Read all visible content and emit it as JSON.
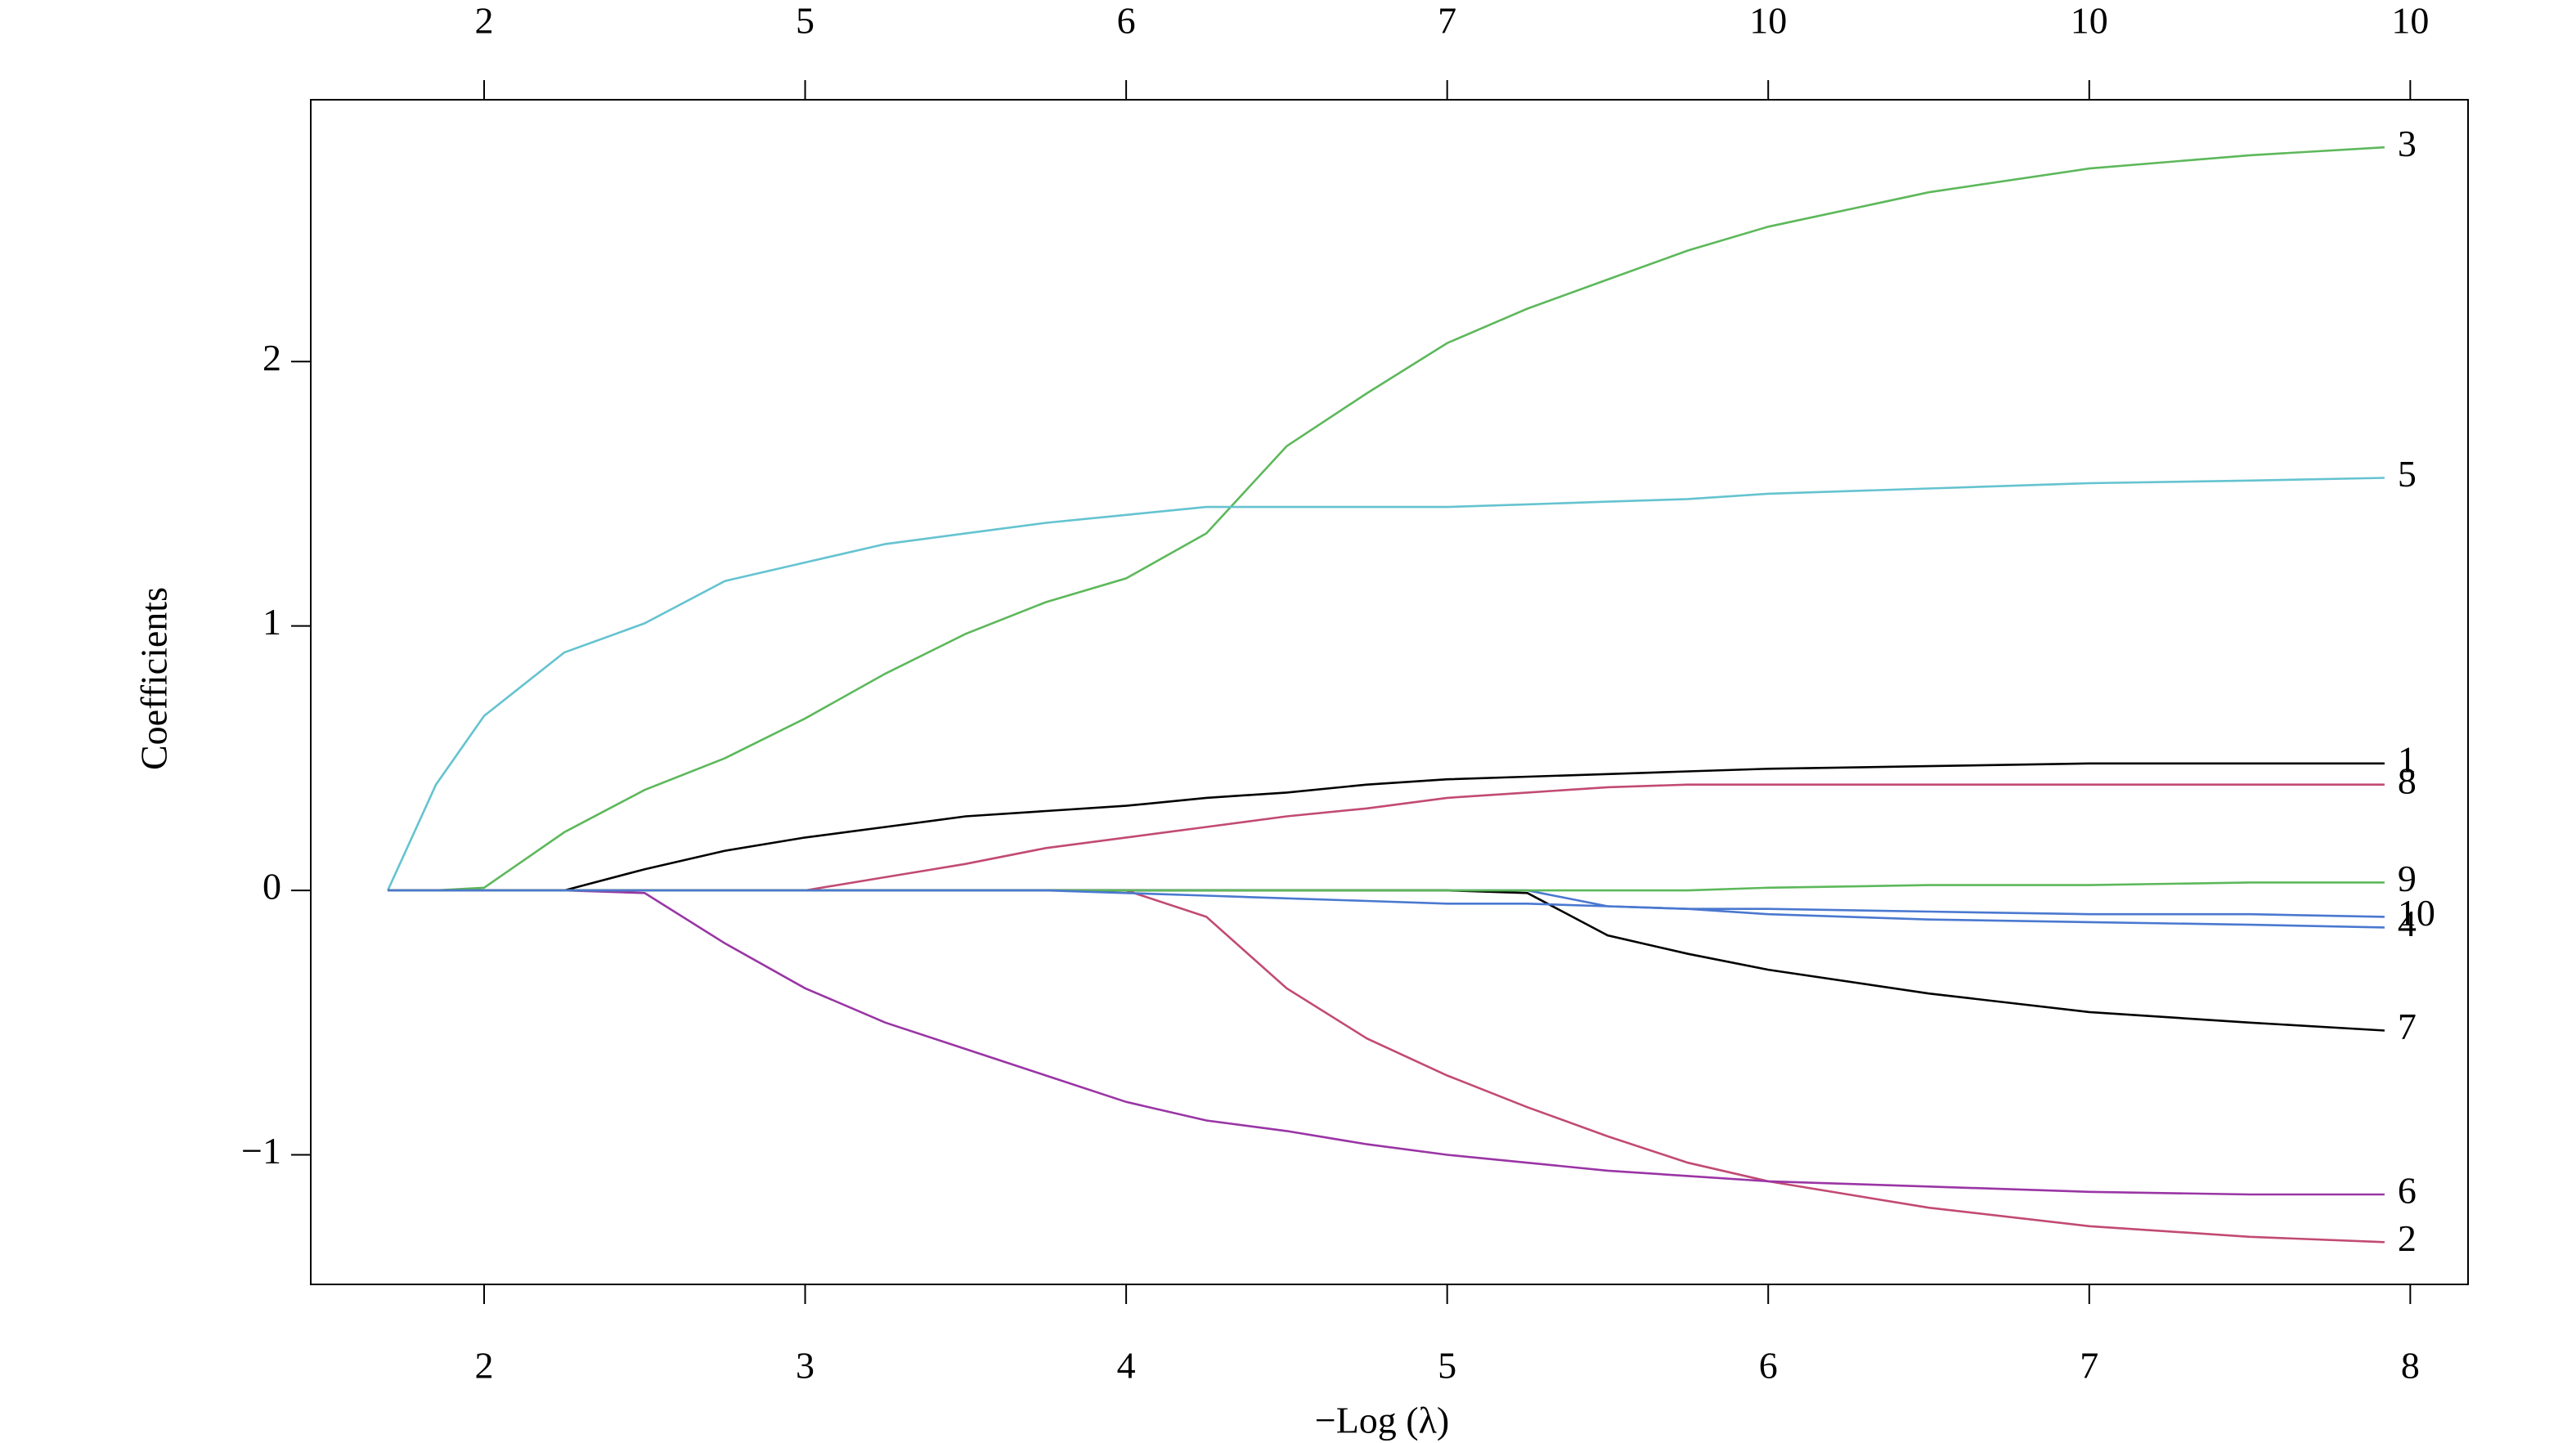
{
  "chart_data": {
    "type": "line",
    "x_label": "−Log (λ)",
    "y_label": "Coefficients",
    "x": [
      1.7,
      1.85,
      2.0,
      2.25,
      2.5,
      2.75,
      3.0,
      3.25,
      3.5,
      3.75,
      4.0,
      4.25,
      4.5,
      4.75,
      5.0,
      5.25,
      5.5,
      5.75,
      6.0,
      6.5,
      7.0,
      7.5,
      7.92
    ],
    "xlim": [
      1.46,
      8.18
    ],
    "ylim": [
      -1.49,
      2.99
    ],
    "xticks": [
      2,
      3,
      4,
      5,
      6,
      7,
      8
    ],
    "x2ticks": [
      2,
      {
        "value": 3,
        "label": "5"
      },
      {
        "value": 4,
        "label": "6"
      },
      {
        "value": 5,
        "label": "7"
      },
      {
        "value": 6,
        "label": "10"
      },
      {
        "value": 7,
        "label": "10"
      },
      {
        "value": 8,
        "label": "10"
      }
    ],
    "yticks": [
      {
        "value": -1,
        "label": "−1"
      },
      0,
      1,
      2
    ],
    "series": [
      {
        "name": "1",
        "color": "#000000",
        "values": [
          0,
          0,
          0,
          0,
          0.08,
          0.15,
          0.2,
          0.24,
          0.28,
          0.3,
          0.32,
          0.35,
          0.37,
          0.4,
          0.42,
          0.43,
          0.44,
          0.45,
          0.46,
          0.47,
          0.48,
          0.48,
          0.48
        ]
      },
      {
        "name": "2",
        "color": "#C24A74",
        "values": [
          0,
          0,
          0,
          0,
          0,
          0,
          0,
          0,
          0,
          0,
          0,
          -0.1,
          -0.37,
          -0.56,
          -0.7,
          -0.82,
          -0.93,
          -1.03,
          -1.1,
          -1.2,
          -1.27,
          -1.31,
          -1.33
        ]
      },
      {
        "name": "3",
        "color": "#5DB85B",
        "values": [
          0,
          0,
          0.01,
          0.22,
          0.38,
          0.5,
          0.65,
          0.82,
          0.97,
          1.09,
          1.18,
          1.35,
          1.68,
          1.88,
          2.07,
          2.2,
          2.31,
          2.42,
          2.51,
          2.64,
          2.73,
          2.78,
          2.81
        ]
      },
      {
        "name": "4",
        "color": "#4A78D0",
        "values": [
          0,
          0,
          0,
          0,
          0,
          0,
          0,
          0,
          0,
          0,
          0,
          0,
          0,
          0,
          0,
          0,
          -0.06,
          -0.07,
          -0.09,
          -0.11,
          -0.12,
          -0.13,
          -0.14
        ]
      },
      {
        "name": "5",
        "color": "#65C3D0",
        "values": [
          0,
          0.4,
          0.66,
          0.9,
          1.01,
          1.17,
          1.24,
          1.31,
          1.35,
          1.39,
          1.42,
          1.45,
          1.45,
          1.45,
          1.45,
          1.46,
          1.47,
          1.48,
          1.5,
          1.52,
          1.54,
          1.55,
          1.56
        ]
      },
      {
        "name": "6",
        "color": "#9A35A5",
        "values": [
          0,
          0,
          0,
          0,
          -0.01,
          -0.2,
          -0.37,
          -0.5,
          -0.6,
          -0.7,
          -0.8,
          -0.87,
          -0.91,
          -0.96,
          -1.0,
          -1.03,
          -1.06,
          -1.08,
          -1.1,
          -1.12,
          -1.14,
          -1.15,
          -1.15
        ]
      },
      {
        "name": "7",
        "color": "#000000",
        "values": [
          0,
          0,
          0,
          0,
          0,
          0,
          0,
          0,
          0,
          0,
          0,
          0,
          0,
          0,
          0,
          -0.01,
          -0.17,
          -0.24,
          -0.3,
          -0.39,
          -0.46,
          -0.5,
          -0.53
        ]
      },
      {
        "name": "8",
        "color": "#C24A74",
        "values": [
          0,
          0,
          0,
          0,
          0,
          0,
          0,
          0.05,
          0.1,
          0.16,
          0.2,
          0.24,
          0.28,
          0.31,
          0.35,
          0.37,
          0.39,
          0.4,
          0.4,
          0.4,
          0.4,
          0.4,
          0.4
        ]
      },
      {
        "name": "9",
        "color": "#5DB85B",
        "values": [
          0,
          0,
          0,
          0,
          0,
          0,
          0,
          0,
          0,
          0,
          0,
          0,
          0,
          0,
          0,
          0,
          0,
          0,
          0.01,
          0.02,
          0.02,
          0.03,
          0.03
        ]
      },
      {
        "name": "10",
        "color": "#4A78D0",
        "values": [
          0,
          0,
          0,
          0,
          0,
          0,
          0,
          0,
          0,
          0,
          -0.01,
          -0.02,
          -0.03,
          -0.04,
          -0.05,
          -0.05,
          -0.06,
          -0.07,
          -0.07,
          -0.08,
          -0.09,
          -0.09,
          -0.1
        ]
      }
    ]
  }
}
